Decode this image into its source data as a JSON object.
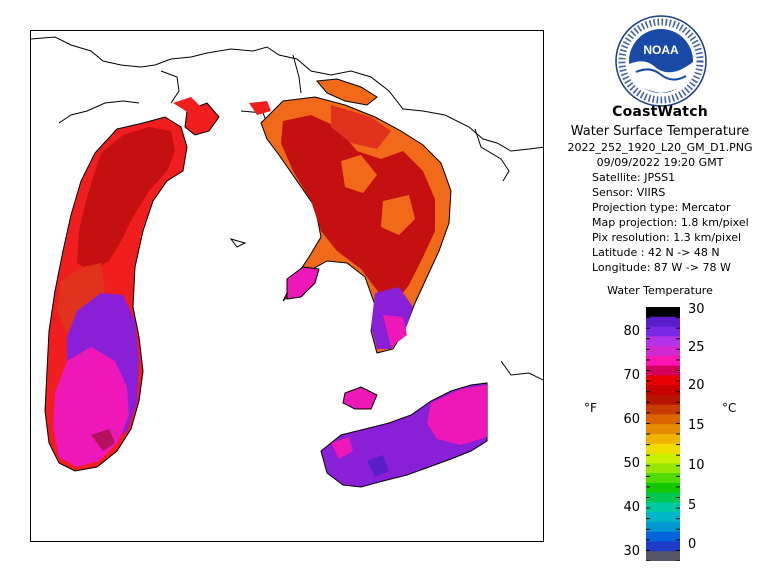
{
  "header": {
    "logo_label": "NOAA",
    "logo_ring_text": "NATIONAL OCEANIC AND ATMOSPHERIC ADMINISTRATION · U.S. DEPARTMENT OF COMMERCE",
    "title": "CoastWatch",
    "subtitle": "Water Surface Temperature",
    "filename": "2022_252_1920_L20_GM_D1.PNG",
    "datetime": "09/09/2022   19:20 GMT"
  },
  "metadata": {
    "satellite": "Satellite: JPSS1",
    "sensor": "Sensor: VIIRS",
    "projection_type": "Projection type:  Mercator",
    "map_projection": "Map projection: 1.8 km/pixel",
    "pix_resolution": "Pix resolution: 1.3 km/pixel",
    "latitude": "Latitude : 42 N -> 48 N",
    "longitude": "Longitude: 87 W -> 78 W"
  },
  "legend": {
    "title": "Water Temperature",
    "unit_f": "°F",
    "unit_c": "°C",
    "ticks_f": [
      "80",
      "70",
      "60",
      "50",
      "40",
      "30"
    ],
    "ticks_c": [
      "30",
      "25",
      "20",
      "15",
      "10",
      "5",
      "0"
    ],
    "colors": [
      "#000000",
      "#5a1ec8",
      "#7a28e6",
      "#b432e6",
      "#d228d2",
      "#ff14b4",
      "#d2005a",
      "#e60000",
      "#c80000",
      "#b41400",
      "#c83c00",
      "#dc6400",
      "#e68c00",
      "#f0b400",
      "#f0dc00",
      "#c8f000",
      "#96e600",
      "#50dc00",
      "#14c800",
      "#00c850",
      "#00c8a0",
      "#00b4c8",
      "#0096d2",
      "#0064dc",
      "#1e3cc8",
      "#555566"
    ]
  },
  "colors": {
    "land": "#ffffff",
    "coastline": "#000000",
    "water_cool_magenta": "#ee18b8",
    "water_purple": "#8a1fd8",
    "water_red": "#f01e1e",
    "water_deep_red": "#c41010",
    "water_orange": "#f06a1a"
  }
}
